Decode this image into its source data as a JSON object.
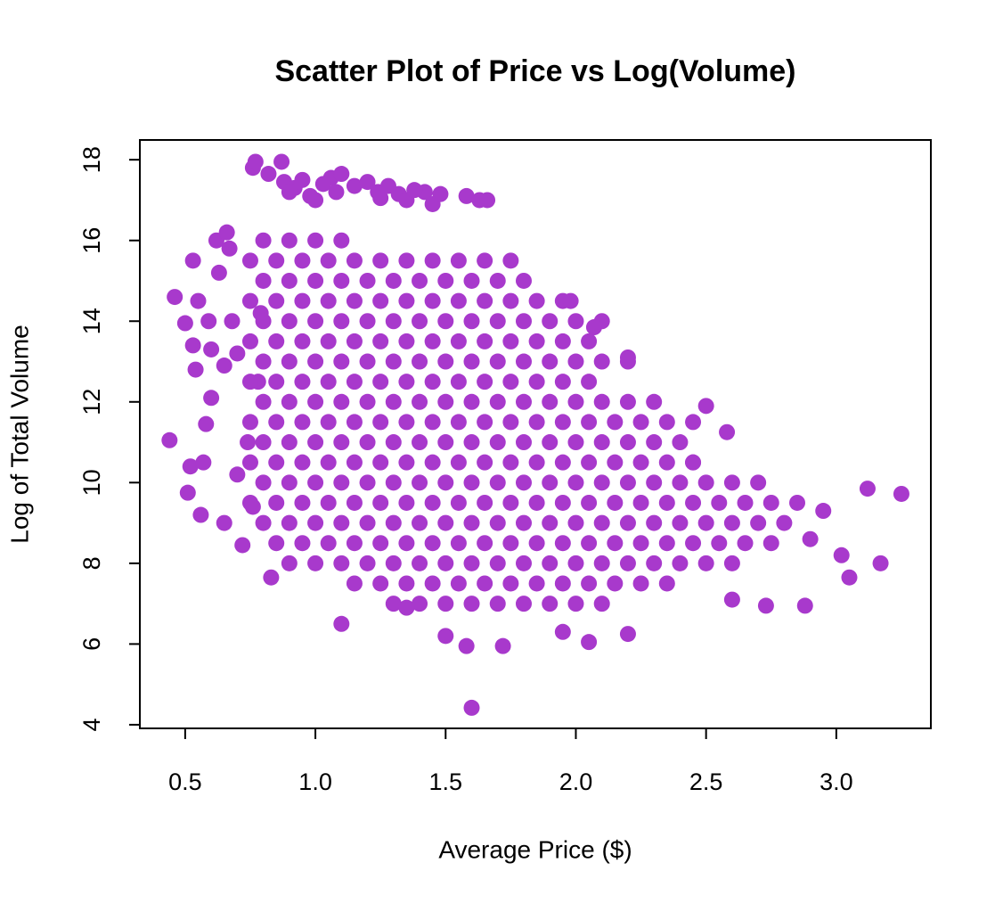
{
  "chart_data": {
    "type": "scatter",
    "title": "Scatter Plot of Price vs Log(Volume)",
    "x_label": "Average Price ($)",
    "y_label": "Log of Total Volume",
    "xlim": [
      0.326,
      3.363
    ],
    "ylim": [
      3.91,
      18.49
    ],
    "xticks": [
      0.5,
      {
        "value": 1,
        "label": "1.0"
      },
      1.5,
      {
        "value": 2,
        "label": "2.0"
      },
      2.5,
      {
        "value": 3,
        "label": "3.0"
      }
    ],
    "yticks": [
      4,
      6,
      8,
      10,
      12,
      14,
      16,
      18
    ],
    "color": "#a839cc",
    "x": [
      0.76,
      0.77,
      0.87,
      0.82,
      0.88,
      0.92,
      0.95,
      0.98,
      1.0,
      1.03,
      1.06,
      1.1,
      1.08,
      1.15,
      1.2,
      1.24,
      1.28,
      1.32,
      1.35,
      1.25,
      1.42,
      1.45,
      1.48,
      1.58,
      1.63,
      1.66,
      1.38,
      0.9,
      0.44,
      0.46,
      0.5,
      0.51,
      0.52,
      0.53,
      0.54,
      0.56,
      0.57,
      0.58,
      0.6,
      0.62,
      0.63,
      0.55,
      0.65,
      0.66,
      0.68,
      0.7,
      0.72,
      0.74,
      0.76,
      0.78,
      0.79,
      0.7,
      0.65,
      0.6,
      0.53,
      0.59,
      0.67,
      0.8,
      0.9,
      1,
      1.1,
      0.75,
      0.85,
      0.95,
      1.05,
      1.15,
      1.25,
      1.35,
      1.45,
      1.55,
      1.65,
      1.75,
      0.8,
      0.9,
      1,
      1.1,
      1.2,
      1.3,
      1.4,
      1.5,
      1.6,
      1.7,
      1.8,
      0.75,
      0.85,
      0.95,
      1.05,
      1.15,
      1.25,
      1.35,
      1.45,
      1.55,
      1.65,
      1.75,
      1.85,
      1.95,
      0.8,
      0.9,
      1,
      1.1,
      1.2,
      1.3,
      1.4,
      1.5,
      1.6,
      1.7,
      1.8,
      1.9,
      2,
      2.1,
      0.75,
      0.85,
      0.95,
      1.05,
      1.15,
      1.25,
      1.35,
      1.45,
      1.55,
      1.65,
      1.75,
      1.85,
      1.95,
      2.05,
      0.8,
      0.9,
      1,
      1.1,
      1.2,
      1.3,
      1.4,
      1.5,
      1.6,
      1.7,
      1.8,
      1.9,
      2,
      2.1,
      2.2,
      0.75,
      0.85,
      0.95,
      1.05,
      1.15,
      1.25,
      1.35,
      1.45,
      1.55,
      1.65,
      1.75,
      1.85,
      1.95,
      2.05,
      0.8,
      0.9,
      1,
      1.1,
      1.2,
      1.3,
      1.4,
      1.5,
      1.6,
      1.7,
      1.8,
      1.9,
      2,
      2.1,
      2.2,
      2.3,
      0.75,
      0.85,
      0.95,
      1.05,
      1.15,
      1.25,
      1.35,
      1.45,
      1.55,
      1.65,
      1.75,
      1.85,
      1.95,
      2.05,
      2.15,
      2.25,
      2.35,
      2.45,
      0.8,
      0.9,
      1,
      1.1,
      1.2,
      1.3,
      1.4,
      1.5,
      1.6,
      1.7,
      1.8,
      1.9,
      2,
      2.1,
      2.2,
      2.3,
      2.4,
      0.75,
      0.85,
      0.95,
      1.05,
      1.15,
      1.25,
      1.35,
      1.45,
      1.55,
      1.65,
      1.75,
      1.85,
      1.95,
      2.05,
      2.15,
      2.25,
      2.35,
      2.45,
      0.8,
      0.9,
      1,
      1.1,
      1.2,
      1.3,
      1.4,
      1.5,
      1.6,
      1.7,
      1.8,
      1.9,
      2,
      2.1,
      2.2,
      2.3,
      2.4,
      2.5,
      2.6,
      2.7,
      0.75,
      0.85,
      0.95,
      1.05,
      1.15,
      1.25,
      1.35,
      1.45,
      1.55,
      1.65,
      1.75,
      1.85,
      1.95,
      2.05,
      2.15,
      2.25,
      2.35,
      2.45,
      2.55,
      2.65,
      2.75,
      2.85,
      0.8,
      0.9,
      1,
      1.1,
      1.2,
      1.3,
      1.4,
      1.5,
      1.6,
      1.7,
      1.8,
      1.9,
      2,
      2.1,
      2.2,
      2.3,
      2.4,
      2.5,
      2.6,
      2.7,
      2.8,
      0.85,
      0.95,
      1.05,
      1.15,
      1.25,
      1.35,
      1.45,
      1.55,
      1.65,
      1.75,
      1.85,
      1.95,
      2.05,
      2.15,
      2.25,
      2.35,
      2.45,
      2.55,
      2.65,
      2.75,
      0.9,
      1,
      1.1,
      1.2,
      1.3,
      1.4,
      1.5,
      1.6,
      1.7,
      1.8,
      1.9,
      2,
      2.1,
      2.2,
      2.3,
      2.4,
      2.5,
      2.6,
      1.15,
      1.25,
      1.35,
      1.45,
      1.55,
      1.65,
      1.75,
      1.85,
      1.95,
      2.05,
      2.15,
      2.25,
      2.35,
      1.3,
      1.4,
      1.5,
      1.6,
      1.7,
      1.8,
      1.9,
      2,
      2.1,
      1.1,
      1.58,
      1.72,
      1.6,
      1.5,
      2.05,
      2.2,
      0.83,
      2.88,
      2.73,
      3.05,
      3.17,
      3.25,
      3.12,
      3.02,
      2.95,
      2.58,
      2.5,
      2.45,
      2.9,
      1.98,
      2.07,
      2.2,
      2.6,
      1.95,
      1.35
    ],
    "values": [
      17.8,
      17.95,
      17.95,
      17.65,
      17.45,
      17.3,
      17.5,
      17.1,
      17.0,
      17.4,
      17.55,
      17.65,
      17.2,
      17.35,
      17.45,
      17.2,
      17.35,
      17.15,
      17.0,
      17.05,
      17.2,
      16.9,
      17.15,
      17.1,
      17.0,
      17.0,
      17.25,
      17.2,
      11.05,
      14.6,
      13.95,
      9.75,
      10.4,
      15.5,
      12.8,
      9.2,
      10.5,
      11.45,
      13.3,
      16.0,
      15.2,
      14.5,
      12.9,
      16.2,
      14.0,
      13.2,
      8.45,
      11.0,
      9.4,
      12.5,
      14.2,
      10.2,
      9.0,
      12.1,
      13.4,
      14.0,
      15.8,
      16,
      16,
      16,
      16,
      15.5,
      15.5,
      15.5,
      15.5,
      15.5,
      15.5,
      15.5,
      15.5,
      15.5,
      15.5,
      15.5,
      15,
      15,
      15,
      15,
      15,
      15,
      15,
      15,
      15,
      15,
      15,
      14.5,
      14.5,
      14.5,
      14.5,
      14.5,
      14.5,
      14.5,
      14.5,
      14.5,
      14.5,
      14.5,
      14.5,
      14.5,
      14,
      14,
      14,
      14,
      14,
      14,
      14,
      14,
      14,
      14,
      14,
      14,
      14,
      14,
      13.5,
      13.5,
      13.5,
      13.5,
      13.5,
      13.5,
      13.5,
      13.5,
      13.5,
      13.5,
      13.5,
      13.5,
      13.5,
      13.5,
      13,
      13,
      13,
      13,
      13,
      13,
      13,
      13,
      13,
      13,
      13,
      13,
      13,
      13,
      13,
      12.5,
      12.5,
      12.5,
      12.5,
      12.5,
      12.5,
      12.5,
      12.5,
      12.5,
      12.5,
      12.5,
      12.5,
      12.5,
      12.5,
      12,
      12,
      12,
      12,
      12,
      12,
      12,
      12,
      12,
      12,
      12,
      12,
      12,
      12,
      12,
      12,
      11.5,
      11.5,
      11.5,
      11.5,
      11.5,
      11.5,
      11.5,
      11.5,
      11.5,
      11.5,
      11.5,
      11.5,
      11.5,
      11.5,
      11.5,
      11.5,
      11.5,
      11.5,
      11,
      11,
      11,
      11,
      11,
      11,
      11,
      11,
      11,
      11,
      11,
      11,
      11,
      11,
      11,
      11,
      11,
      10.5,
      10.5,
      10.5,
      10.5,
      10.5,
      10.5,
      10.5,
      10.5,
      10.5,
      10.5,
      10.5,
      10.5,
      10.5,
      10.5,
      10.5,
      10.5,
      10.5,
      10.5,
      10,
      10,
      10,
      10,
      10,
      10,
      10,
      10,
      10,
      10,
      10,
      10,
      10,
      10,
      10,
      10,
      10,
      10,
      10,
      10,
      9.5,
      9.5,
      9.5,
      9.5,
      9.5,
      9.5,
      9.5,
      9.5,
      9.5,
      9.5,
      9.5,
      9.5,
      9.5,
      9.5,
      9.5,
      9.5,
      9.5,
      9.5,
      9.5,
      9.5,
      9.5,
      9.5,
      9,
      9,
      9,
      9,
      9,
      9,
      9,
      9,
      9,
      9,
      9,
      9,
      9,
      9,
      9,
      9,
      9,
      9,
      9,
      9,
      9,
      8.5,
      8.5,
      8.5,
      8.5,
      8.5,
      8.5,
      8.5,
      8.5,
      8.5,
      8.5,
      8.5,
      8.5,
      8.5,
      8.5,
      8.5,
      8.5,
      8.5,
      8.5,
      8.5,
      8.5,
      8,
      8,
      8,
      8,
      8,
      8,
      8,
      8,
      8,
      8,
      8,
      8,
      8,
      8,
      8,
      8,
      8,
      8,
      7.5,
      7.5,
      7.5,
      7.5,
      7.5,
      7.5,
      7.5,
      7.5,
      7.5,
      7.5,
      7.5,
      7.5,
      7.5,
      7,
      7,
      7,
      7,
      7,
      7,
      7,
      7,
      7,
      6.5,
      5.95,
      5.95,
      4.42,
      6.2,
      6.05,
      6.25,
      7.65,
      6.95,
      6.95,
      7.65,
      8.0,
      9.72,
      9.85,
      8.2,
      9.3,
      11.25,
      11.9,
      10.5,
      8.6,
      14.5,
      13.85,
      13.1,
      7.1,
      6.3,
      6.9
    ]
  }
}
